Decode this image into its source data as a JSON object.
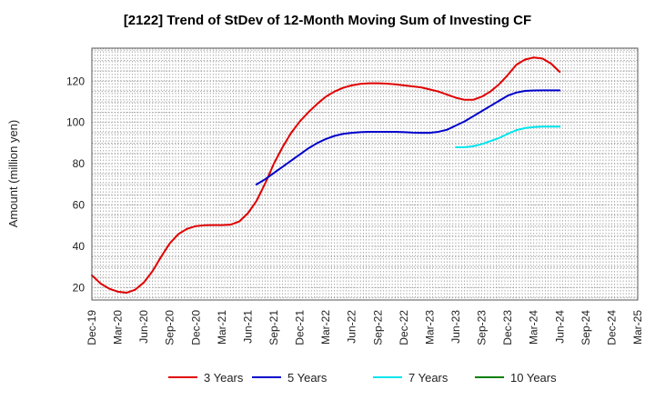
{
  "chart_data": {
    "type": "line",
    "title": "[2122]  Trend of StDev of 12-Month Moving Sum of Investing CF",
    "ylabel": "Amount (million yen)",
    "xlabel": "",
    "ylim": [
      14,
      136
    ],
    "yticks": [
      20,
      40,
      60,
      80,
      100,
      120
    ],
    "x_tick_labels": [
      "Dec-19",
      "Mar-20",
      "Jun-20",
      "Sep-20",
      "Dec-20",
      "Mar-21",
      "Jun-21",
      "Sep-21",
      "Dec-21",
      "Mar-22",
      "Jun-22",
      "Sep-22",
      "Dec-22",
      "Mar-23",
      "Jun-23",
      "Sep-23",
      "Dec-23",
      "Mar-24",
      "Jun-24",
      "Sep-24",
      "Dec-24",
      "Mar-25"
    ],
    "grid": true,
    "legend_position": "bottom",
    "series": [
      {
        "name": "3 Years",
        "color": "#e00000",
        "start_index": 0,
        "values": [
          26,
          22,
          19.5,
          18,
          17.5,
          19,
          22.5,
          28,
          35,
          41.5,
          46,
          48.5,
          49.8,
          50.2,
          50.3,
          50.3,
          50.5,
          52,
          56,
          62,
          70.5,
          80,
          88,
          95,
          100.5,
          105,
          109,
          112.5,
          115,
          116.8,
          118,
          118.7,
          119,
          119,
          118.8,
          118.5,
          118,
          117.5,
          117,
          116,
          115,
          113.5,
          112,
          111,
          111,
          112.5,
          115,
          118.5,
          123,
          128,
          130.5,
          131.5,
          131,
          128.5,
          124.5
        ]
      },
      {
        "name": "5 Years",
        "color": "#0000cc",
        "start_index": 19,
        "values": [
          70,
          72.5,
          75.5,
          78.5,
          81.5,
          84.5,
          87.5,
          90,
          92,
          93.5,
          94.5,
          95,
          95.3,
          95.5,
          95.5,
          95.5,
          95.5,
          95.3,
          95.1,
          95,
          95,
          95.5,
          96.5,
          98.5,
          100.5,
          103,
          105.5,
          108,
          110.5,
          113,
          114.5,
          115.3,
          115.5,
          115.6,
          115.6,
          115.6
        ]
      },
      {
        "name": "7 Years",
        "color": "#00e5ee",
        "start_index": 42,
        "values": [
          88,
          88,
          88.5,
          89.5,
          91,
          92.5,
          94.5,
          96.3,
          97.3,
          97.8,
          98,
          98,
          98
        ]
      },
      {
        "name": "10 Years",
        "color": "#008000",
        "start_index": 0,
        "values": []
      }
    ]
  }
}
